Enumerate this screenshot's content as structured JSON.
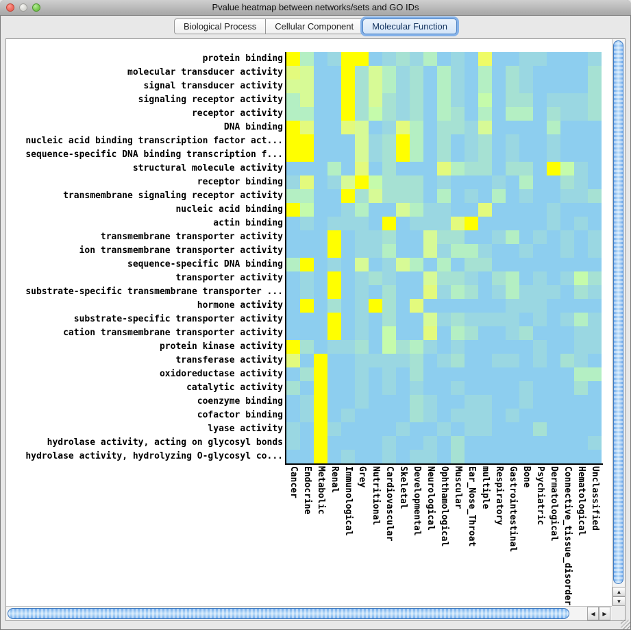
{
  "window": {
    "title": "Pvalue heatmap between networks/sets and GO IDs"
  },
  "traffic_lights": {
    "close_color": "#ED6A5E",
    "minimize_color": "#D8D8D4",
    "zoom_color": "#78C94F"
  },
  "tabs": [
    {
      "label": "Biological Process",
      "selected": false
    },
    {
      "label": "Cellular Component",
      "selected": false
    },
    {
      "label": "Molecular Function",
      "selected": true
    }
  ],
  "scrollbars": {
    "horizontal": {
      "left_arrow": "◀",
      "right_arrow": "▶"
    },
    "vertical": {
      "up_arrow": "▲",
      "down_arrow": "▼"
    }
  },
  "chart_data": {
    "type": "heatmap",
    "title": "Pvalue heatmap between networks/sets and GO IDs",
    "rows": [
      "protein binding",
      "molecular transducer activity",
      "signal transducer activity",
      "signaling receptor activity",
      "receptor activity",
      "DNA binding",
      "nucleic acid binding transcription factor act...",
      "sequence-specific DNA binding transcription f...",
      "structural molecule activity",
      "receptor binding",
      "transmembrane signaling receptor activity",
      "nucleic acid binding",
      "actin binding",
      "transmembrane transporter activity",
      "ion transmembrane transporter activity",
      "sequence-specific DNA binding",
      "transporter activity",
      "substrate-specific transmembrane transporter ...",
      "hormone activity",
      "substrate-specific transporter activity",
      "cation transmembrane transporter activity",
      "protein kinase activity",
      "transferase activity",
      "oxidoreductase activity",
      "catalytic activity",
      "coenzyme binding",
      "cofactor binding",
      "lyase activity",
      "hydrolase activity, acting on glycosyl bonds",
      "hydrolase activity, hydrolyzing O-glycosyl co..."
    ],
    "columns": [
      "Cancer",
      "Endocrine",
      "Metabolic",
      "Renal",
      "Immunological",
      "Grey",
      "Nutritional",
      "Cardiovascular",
      "Skeletal",
      "Developmental",
      "Neurological",
      "Ophthamological",
      "Muscular",
      "Ear_Nose_Throat",
      "multiple",
      "Respiratory",
      "Gastrointestinal",
      "Bone",
      "Psychiatric",
      "Dermatological",
      "Connective_tissue_disorder",
      "Hematological",
      "Unclassified"
    ],
    "palette": [
      "#8DCEEF",
      "#9AD7E2",
      "#A6E1D3",
      "#B4EFC3",
      "#C5FBAB",
      "#D7FA96",
      "#E3FA7D",
      "#EFFB66",
      "#FFFF00"
    ],
    "palette_note": "p-value intensity index: 0 = low (sky blue) .. 8 = high (yellow)",
    "values": [
      [
        8,
        3,
        0,
        1,
        8,
        8,
        0,
        1,
        2,
        1,
        3,
        0,
        1,
        0,
        7,
        0,
        0,
        1,
        1,
        0,
        0,
        0,
        1
      ],
      [
        6,
        5,
        0,
        0,
        8,
        2,
        5,
        3,
        1,
        2,
        0,
        3,
        1,
        0,
        3,
        0,
        2,
        1,
        0,
        0,
        0,
        0,
        2
      ],
      [
        5,
        5,
        0,
        0,
        8,
        2,
        5,
        3,
        1,
        2,
        0,
        3,
        1,
        0,
        3,
        0,
        2,
        1,
        0,
        0,
        0,
        0,
        2
      ],
      [
        3,
        5,
        0,
        0,
        8,
        2,
        5,
        2,
        1,
        2,
        0,
        3,
        1,
        0,
        4,
        0,
        2,
        2,
        0,
        1,
        1,
        1,
        2
      ],
      [
        3,
        3,
        0,
        0,
        8,
        2,
        4,
        2,
        1,
        2,
        0,
        3,
        2,
        0,
        3,
        0,
        3,
        3,
        0,
        2,
        1,
        1,
        2
      ],
      [
        8,
        6,
        0,
        0,
        6,
        5,
        0,
        1,
        6,
        3,
        0,
        2,
        2,
        1,
        5,
        0,
        0,
        0,
        0,
        3,
        0,
        0,
        0
      ],
      [
        8,
        8,
        0,
        0,
        0,
        5,
        1,
        2,
        8,
        3,
        0,
        2,
        0,
        1,
        2,
        0,
        1,
        0,
        0,
        1,
        0,
        0,
        0
      ],
      [
        8,
        8,
        0,
        0,
        0,
        5,
        1,
        2,
        8,
        3,
        0,
        2,
        0,
        1,
        2,
        0,
        1,
        0,
        0,
        1,
        0,
        0,
        0
      ],
      [
        0,
        0,
        0,
        3,
        0,
        6,
        0,
        2,
        0,
        0,
        0,
        6,
        3,
        2,
        2,
        0,
        2,
        2,
        0,
        8,
        4,
        1,
        0
      ],
      [
        1,
        6,
        0,
        1,
        5,
        8,
        4,
        2,
        2,
        2,
        0,
        1,
        0,
        0,
        0,
        1,
        0,
        3,
        0,
        0,
        2,
        1,
        0
      ],
      [
        3,
        3,
        0,
        0,
        8,
        2,
        5,
        2,
        2,
        2,
        0,
        3,
        0,
        1,
        0,
        3,
        0,
        1,
        0,
        0,
        1,
        1,
        2
      ],
      [
        8,
        4,
        0,
        0,
        1,
        3,
        0,
        0,
        5,
        3,
        1,
        1,
        0,
        0,
        6,
        0,
        0,
        0,
        0,
        1,
        0,
        0,
        0
      ],
      [
        0,
        1,
        0,
        1,
        1,
        1,
        0,
        8,
        0,
        1,
        1,
        1,
        6,
        8,
        0,
        0,
        0,
        0,
        0,
        1,
        0,
        1,
        0
      ],
      [
        0,
        0,
        0,
        8,
        0,
        1,
        1,
        2,
        0,
        0,
        5,
        2,
        2,
        0,
        0,
        1,
        3,
        0,
        1,
        0,
        1,
        0,
        1
      ],
      [
        0,
        0,
        0,
        8,
        0,
        1,
        1,
        3,
        0,
        0,
        5,
        1,
        3,
        3,
        1,
        0,
        0,
        1,
        0,
        0,
        1,
        0,
        1
      ],
      [
        3,
        8,
        0,
        1,
        0,
        5,
        0,
        1,
        5,
        3,
        0,
        3,
        0,
        2,
        2,
        0,
        0,
        0,
        0,
        0,
        0,
        0,
        0
      ],
      [
        0,
        1,
        0,
        8,
        0,
        1,
        2,
        1,
        0,
        0,
        5,
        2,
        2,
        1,
        0,
        2,
        3,
        0,
        1,
        0,
        1,
        4,
        2
      ],
      [
        0,
        1,
        0,
        8,
        0,
        1,
        0,
        2,
        0,
        0,
        6,
        1,
        3,
        2,
        0,
        1,
        3,
        1,
        1,
        1,
        0,
        2,
        1
      ],
      [
        0,
        8,
        0,
        2,
        0,
        1,
        8,
        2,
        0,
        6,
        0,
        0,
        0,
        0,
        0,
        0,
        1,
        1,
        1,
        0,
        0,
        0,
        0
      ],
      [
        0,
        0,
        0,
        8,
        0,
        1,
        0,
        2,
        0,
        0,
        5,
        1,
        2,
        1,
        1,
        1,
        1,
        0,
        1,
        0,
        1,
        3,
        1
      ],
      [
        0,
        0,
        0,
        8,
        0,
        1,
        0,
        4,
        0,
        0,
        6,
        0,
        3,
        2,
        0,
        0,
        1,
        2,
        0,
        0,
        0,
        1,
        1
      ],
      [
        8,
        2,
        0,
        1,
        1,
        2,
        0,
        4,
        2,
        3,
        1,
        0,
        1,
        0,
        0,
        0,
        0,
        0,
        1,
        0,
        0,
        1,
        1
      ],
      [
        6,
        0,
        8,
        0,
        0,
        1,
        1,
        1,
        1,
        2,
        0,
        1,
        2,
        0,
        0,
        1,
        1,
        0,
        1,
        0,
        2,
        1,
        0
      ],
      [
        0,
        2,
        8,
        0,
        0,
        1,
        0,
        1,
        0,
        2,
        0,
        0,
        0,
        0,
        0,
        0,
        0,
        0,
        0,
        0,
        0,
        3,
        3
      ],
      [
        2,
        0,
        8,
        0,
        0,
        1,
        0,
        1,
        0,
        1,
        0,
        0,
        1,
        0,
        0,
        0,
        0,
        1,
        0,
        0,
        0,
        2,
        0
      ],
      [
        0,
        1,
        8,
        0,
        0,
        1,
        0,
        0,
        0,
        2,
        1,
        0,
        0,
        1,
        1,
        0,
        0,
        1,
        0,
        0,
        0,
        0,
        0
      ],
      [
        0,
        1,
        8,
        0,
        1,
        0,
        0,
        0,
        0,
        2,
        1,
        0,
        1,
        1,
        1,
        0,
        1,
        0,
        0,
        0,
        0,
        0,
        0
      ],
      [
        1,
        0,
        8,
        1,
        0,
        0,
        0,
        0,
        1,
        0,
        0,
        1,
        0,
        1,
        1,
        0,
        0,
        0,
        2,
        0,
        0,
        0,
        0
      ],
      [
        1,
        0,
        8,
        0,
        0,
        0,
        0,
        1,
        0,
        0,
        1,
        0,
        2,
        0,
        0,
        0,
        0,
        0,
        0,
        0,
        0,
        0,
        1
      ],
      [
        0,
        0,
        8,
        0,
        1,
        0,
        0,
        1,
        0,
        1,
        1,
        0,
        2,
        0,
        0,
        0,
        0,
        0,
        0,
        0,
        0,
        0,
        0
      ]
    ]
  }
}
